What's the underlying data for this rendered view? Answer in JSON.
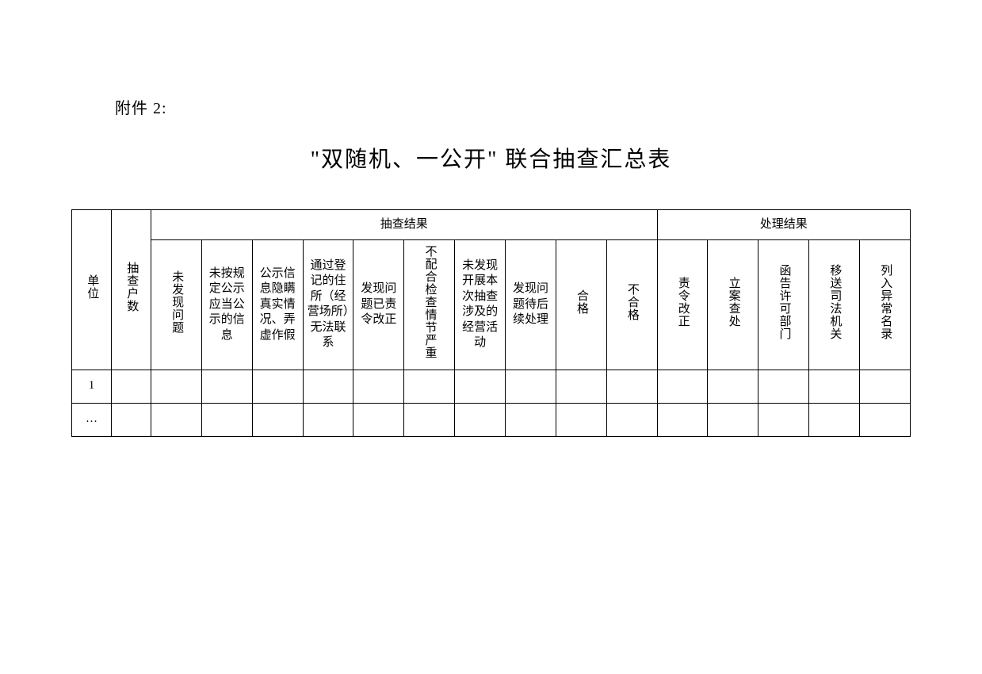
{
  "attachment_label": "附件 2:",
  "title": "\"双随机、一公开\" 联合抽查汇总表",
  "table": {
    "header_groups": {
      "inspection_result": "抽查结果",
      "handling_result": "处理结果"
    },
    "columns": {
      "unit": "单位",
      "count": "抽查户数",
      "no_issue": "未发现问题",
      "not_disclosed": "未按规定公示应当公示的信息",
      "concealment": "公示信息隐瞒真实情况、弄虚作假",
      "no_contact": "通过登记的住所（经营场所）无法联系",
      "rectified": "发现问题已责令改正",
      "serious": "不配合检查情节严重",
      "no_activity": "未发现开展本次抽查涉及的经营活动",
      "pending": "发现问题待后续处理",
      "qualified": "合格",
      "unqualified": "不合格",
      "order_correct": "责令改正",
      "file_case": "立案查处",
      "notify": "函告许可部门",
      "transfer": "移送司法机关",
      "abnormal": "列入异常名录"
    },
    "rows": [
      {
        "index": "1"
      },
      {
        "index": "…"
      }
    ]
  },
  "style": {
    "background_color": "#ffffff",
    "text_color": "#000000",
    "border_color": "#000000",
    "title_fontsize": 28,
    "label_fontsize": 20,
    "cell_fontsize": 15,
    "font_family": "SimSun"
  }
}
